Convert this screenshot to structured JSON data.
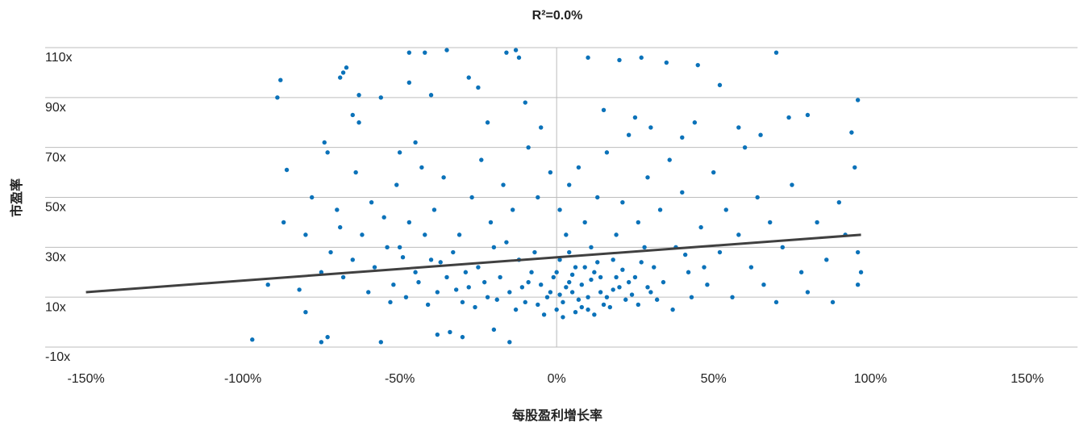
{
  "chart_data": {
    "type": "scatter",
    "title": "R²=0.0%",
    "x_label": "每股盈利增长率",
    "y_label": "市盈率",
    "color": "#0b72b9",
    "grid": true,
    "xlim": [
      -163,
      166
    ],
    "ylim": [
      -10,
      110
    ],
    "xticks": [
      {
        "value": -150,
        "label": "-150%"
      },
      {
        "value": -100,
        "label": "-100%"
      },
      {
        "value": -50,
        "label": "-50%"
      },
      {
        "value": 0,
        "label": "0%"
      },
      {
        "value": 50,
        "label": "50%"
      },
      {
        "value": 100,
        "label": "100%"
      },
      {
        "value": 150,
        "label": "150%"
      }
    ],
    "yticks": [
      {
        "value": -10,
        "label": "-10x"
      },
      {
        "value": 10,
        "label": "10x"
      },
      {
        "value": 30,
        "label": "30x"
      },
      {
        "value": 50,
        "label": "50x"
      },
      {
        "value": 70,
        "label": "70x"
      },
      {
        "value": 90,
        "label": "90x"
      },
      {
        "value": 110,
        "label": "110x"
      }
    ],
    "trendline": {
      "color": "#404040",
      "x": [
        -150,
        97
      ],
      "y": [
        12,
        35
      ]
    },
    "x": [
      -97,
      -88,
      -89,
      -86,
      -87,
      -80,
      -82,
      -80,
      -75,
      -73,
      -74,
      -73,
      -68,
      -69,
      -67,
      -63,
      -63,
      -65,
      -56,
      -56,
      -47,
      -47,
      -42,
      -40,
      -35,
      -28,
      -25,
      -16,
      -13,
      -12,
      -10,
      -15,
      -34,
      -38,
      -30,
      -20,
      10,
      20,
      27,
      35,
      45,
      52,
      70,
      74,
      80,
      96,
      94,
      95,
      96,
      97,
      96,
      -92,
      0,
      2,
      5,
      8,
      10,
      12,
      15,
      18,
      20,
      22,
      25,
      28,
      30,
      3,
      6,
      -3,
      -5,
      -8,
      -10,
      -12,
      -15,
      -18,
      -20,
      -22,
      -25,
      -28,
      -30,
      -33,
      -35,
      -38,
      -40,
      -42,
      -45,
      -48,
      -50,
      -52,
      -55,
      -58,
      -60,
      -62,
      -65,
      -68,
      -70,
      -72,
      -75,
      -78,
      1,
      4,
      7,
      9,
      11,
      13,
      16,
      19,
      21,
      23,
      26,
      29,
      31,
      33,
      36,
      38,
      40,
      42,
      44,
      46,
      48,
      50,
      52,
      54,
      56,
      58,
      60,
      62,
      64,
      66,
      68,
      70,
      72,
      75,
      78,
      80,
      83,
      86,
      88,
      90,
      92,
      -2,
      -6,
      -9,
      -14,
      -17,
      -21,
      -24,
      -27,
      -31,
      -36,
      -39,
      -43,
      -47,
      -51,
      -54,
      -59,
      -64,
      -69,
      2,
      6,
      12,
      -4,
      -1,
      1,
      4,
      7,
      9,
      14,
      17,
      24,
      27,
      32,
      34,
      37,
      41,
      43,
      47,
      -7,
      -11,
      -13,
      -16,
      -19,
      -23,
      -26,
      -29,
      -32,
      -37,
      -41,
      -44,
      -49,
      -53,
      15,
      25,
      30,
      40,
      58,
      65,
      -5,
      -22,
      -45,
      -50,
      3,
      5,
      8,
      11,
      13,
      16,
      19,
      -2,
      -6,
      -9,
      0,
      1,
      4,
      10,
      14,
      18,
      21,
      23,
      26,
      29
    ],
    "y": [
      -7,
      97,
      90,
      61,
      40,
      35,
      13,
      4,
      -8,
      -6,
      72,
      68,
      100,
      98,
      102,
      91,
      80,
      83,
      90,
      -8,
      108,
      96,
      108,
      91,
      109,
      98,
      94,
      108,
      109,
      106,
      88,
      -8,
      -4,
      -5,
      -6,
      -3,
      106,
      105,
      106,
      104,
      103,
      95,
      108,
      82,
      83,
      89,
      76,
      62,
      28,
      20,
      15,
      15,
      5,
      8,
      12,
      15,
      10,
      20,
      7,
      25,
      14,
      9,
      18,
      30,
      12,
      35,
      22,
      10,
      15,
      20,
      8,
      25,
      12,
      18,
      30,
      10,
      22,
      14,
      8,
      28,
      18,
      12,
      25,
      35,
      20,
      10,
      30,
      15,
      42,
      22,
      12,
      35,
      25,
      18,
      45,
      28,
      20,
      50,
      45,
      55,
      62,
      40,
      30,
      50,
      68,
      35,
      48,
      75,
      40,
      58,
      22,
      45,
      65,
      30,
      52,
      20,
      80,
      38,
      15,
      60,
      28,
      45,
      10,
      35,
      70,
      22,
      50,
      15,
      40,
      8,
      30,
      55,
      20,
      12,
      40,
      25,
      8,
      48,
      35,
      60,
      50,
      70,
      45,
      55,
      40,
      65,
      50,
      35,
      58,
      45,
      62,
      40,
      55,
      30,
      48,
      60,
      38,
      2,
      4,
      3,
      3,
      18,
      25,
      16,
      9,
      22,
      12,
      6,
      11,
      24,
      9,
      16,
      5,
      27,
      10,
      22,
      28,
      14,
      5,
      32,
      9,
      16,
      6,
      20,
      13,
      24,
      7,
      16,
      26,
      8,
      85,
      82,
      78,
      74,
      78,
      75,
      78,
      80,
      72,
      68,
      14,
      19,
      6,
      17,
      24,
      10,
      18,
      12,
      7,
      16,
      20,
      11,
      28,
      5,
      18,
      13,
      21,
      16,
      7,
      14
    ]
  }
}
